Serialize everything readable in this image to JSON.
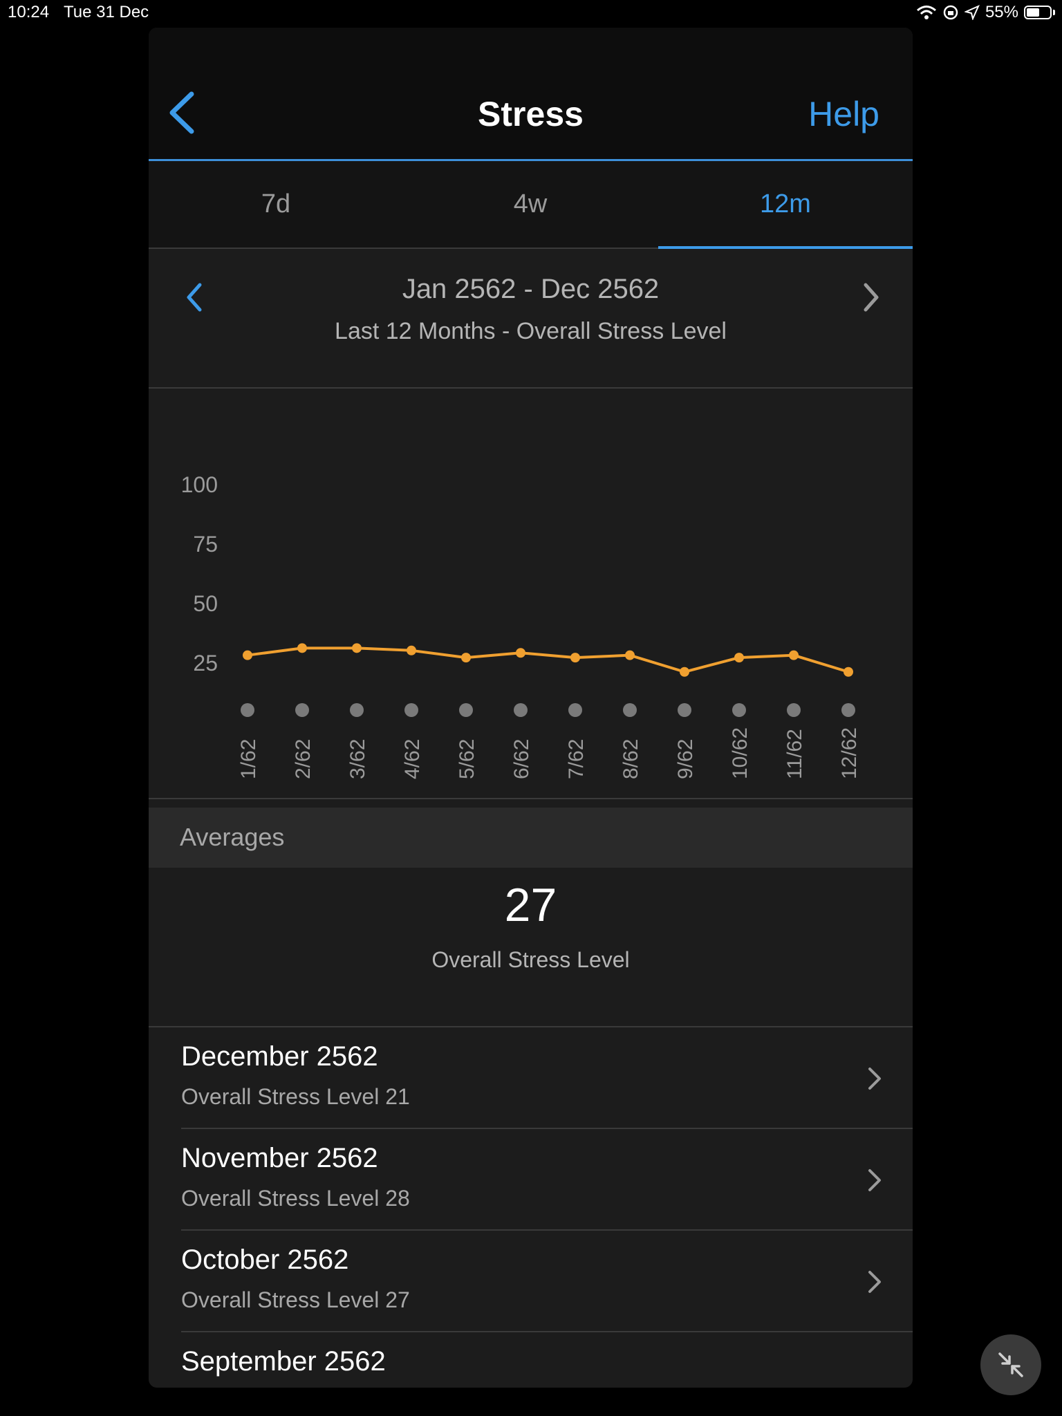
{
  "status_bar": {
    "time": "10:24",
    "date": "Tue 31 Dec",
    "battery": "55%"
  },
  "header": {
    "title": "Stress",
    "help_label": "Help"
  },
  "tabs": [
    {
      "label": "7d",
      "active": false
    },
    {
      "label": "4w",
      "active": false
    },
    {
      "label": "12m",
      "active": true
    }
  ],
  "range": {
    "title": "Jan 2562 - Dec 2562",
    "subtitle": "Last 12 Months - Overall Stress Level"
  },
  "chart_data": {
    "type": "line",
    "categories": [
      "1/62",
      "2/62",
      "3/62",
      "4/62",
      "5/62",
      "6/62",
      "7/62",
      "8/62",
      "9/62",
      "10/62",
      "11/62",
      "12/62"
    ],
    "series": [
      {
        "values": [
          28,
          31,
          31,
          30,
          27,
          29,
          27,
          28,
          21,
          27,
          28,
          21
        ]
      }
    ],
    "y_ticks": [
      25,
      50,
      75,
      100
    ],
    "ylim": [
      0,
      100
    ],
    "grid": false,
    "line_color": "#f0a030"
  },
  "averages": {
    "header": "Averages",
    "value": "27",
    "label": "Overall Stress Level"
  },
  "months": [
    {
      "title": "December 2562",
      "subtitle": "Overall Stress Level 21"
    },
    {
      "title": "November 2562",
      "subtitle": "Overall Stress Level 28"
    },
    {
      "title": "October 2562",
      "subtitle": "Overall Stress Level 27"
    },
    {
      "title": "September 2562",
      "subtitle": ""
    }
  ],
  "colors": {
    "accent": "#3d9be9",
    "background": "#1c1c1c"
  },
  "icons": {
    "back": "chevron-left-icon",
    "collapse": "collapse-icon"
  }
}
